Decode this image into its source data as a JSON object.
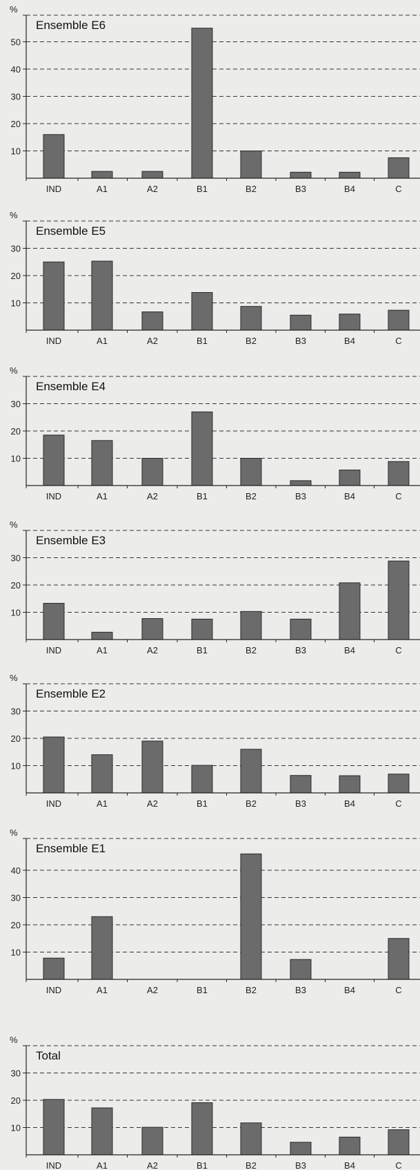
{
  "chart_data": [
    {
      "type": "bar",
      "title": "Ensemble E6",
      "ylabel": "%",
      "categories": [
        "IND",
        "A1",
        "A2",
        "B1",
        "B2",
        "B3",
        "B4",
        "C"
      ],
      "values": [
        16,
        2.5,
        2.5,
        55,
        10,
        2.2,
        2.2,
        7.5
      ],
      "yticks": [
        10,
        20,
        30,
        40,
        50
      ],
      "ylim": [
        0,
        60
      ],
      "grid": true
    },
    {
      "type": "bar",
      "title": "Ensemble E5",
      "ylabel": "%",
      "categories": [
        "IND",
        "A1",
        "A2",
        "B1",
        "B2",
        "B3",
        "B4",
        "C"
      ],
      "values": [
        25,
        25.3,
        6.7,
        13.8,
        8.7,
        5.5,
        5.9,
        7.3
      ],
      "yticks": [
        10,
        20,
        30
      ],
      "ylim": [
        0,
        38
      ],
      "grid": true
    },
    {
      "type": "bar",
      "title": "Ensemble E4",
      "ylabel": "%",
      "categories": [
        "IND",
        "A1",
        "A2",
        "B1",
        "B2",
        "B3",
        "B4",
        "C"
      ],
      "values": [
        18.5,
        16.5,
        10,
        27,
        10,
        1.8,
        5.7,
        8.8
      ],
      "yticks": [
        10,
        20,
        30
      ],
      "ylim": [
        0,
        38
      ],
      "grid": true
    },
    {
      "type": "bar",
      "title": "Ensemble E3",
      "ylabel": "%",
      "categories": [
        "IND",
        "A1",
        "A2",
        "B1",
        "B2",
        "B3",
        "B4",
        "C"
      ],
      "values": [
        13.3,
        2.7,
        7.7,
        7.5,
        10.3,
        7.5,
        20.8,
        28.8
      ],
      "yticks": [
        10,
        20,
        30
      ],
      "ylim": [
        0,
        38
      ],
      "grid": true
    },
    {
      "type": "bar",
      "title": "Ensemble E2",
      "ylabel": "%",
      "categories": [
        "IND",
        "A1",
        "A2",
        "B1",
        "B2",
        "B3",
        "B4",
        "C"
      ],
      "values": [
        20.5,
        14,
        19,
        10.1,
        16,
        6.4,
        6.3,
        6.9
      ],
      "yticks": [
        10,
        20,
        30
      ],
      "ylim": [
        0,
        38
      ],
      "grid": true
    },
    {
      "type": "bar",
      "title": "Ensemble E1",
      "ylabel": "%",
      "categories": [
        "IND",
        "A1",
        "A2",
        "B1",
        "B2",
        "B3",
        "B4",
        "C"
      ],
      "values": [
        7.8,
        23,
        0,
        0,
        46,
        7.3,
        0,
        15
      ],
      "yticks": [
        10,
        20,
        30,
        40
      ],
      "ylim": [
        0,
        50
      ],
      "grid": true
    },
    {
      "type": "bar",
      "title": "Total",
      "ylabel": "%",
      "categories": [
        "IND",
        "A1",
        "A2",
        "B1",
        "B2",
        "B3",
        "B4",
        "C"
      ],
      "values": [
        20.3,
        17.2,
        10.1,
        19.1,
        11.7,
        4.6,
        6.5,
        9.2
      ],
      "yticks": [
        10,
        20,
        30
      ],
      "ylim": [
        0,
        38
      ],
      "grid": true
    }
  ],
  "colors": {
    "bar_fill": "#6b6b6b",
    "bar_stroke": "#2a2a2a",
    "axis": "#222222",
    "grid": "#333333",
    "background": "#ececea"
  }
}
